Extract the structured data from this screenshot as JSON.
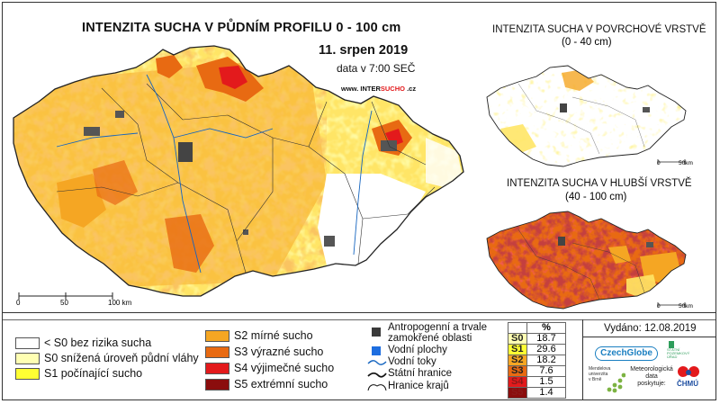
{
  "main_map": {
    "title": "INTENZITA SUCHA V PŮDNÍM PROFILU 0 - 100 cm",
    "date": "11. srpen 2019",
    "data_time": "data v 7:00 SEČ",
    "website": {
      "prefix": "www. INTER",
      "brand": "SUCHO",
      "suffix": " .cz"
    },
    "scale_labels": [
      "0",
      "50",
      "100 km"
    ]
  },
  "surface_map": {
    "title": "INTENZITA SUCHA V POVRCHOVÉ VRSTVĚ",
    "subtitle": "(0 - 40 cm)",
    "scale_labels": [
      "0",
      "50km"
    ]
  },
  "deep_map": {
    "title": "INTENZITA SUCHA V HLUBŠÍ VRSTVĚ",
    "subtitle": "(40 - 100 cm)",
    "scale_labels": [
      "0",
      "50km"
    ]
  },
  "legend": {
    "classes": [
      {
        "label": "< S0 bez rizika sucha",
        "color": "#ffffff"
      },
      {
        "label": "S0 snížená úroveň půdní vláhy",
        "color": "#ffffb3"
      },
      {
        "label": "S1 počínající sucho",
        "color": "#ffff33"
      },
      {
        "label": "S2 mírné sucho",
        "color": "#f5a623"
      },
      {
        "label": "S3 výrazné sucho",
        "color": "#e86a12"
      },
      {
        "label": "S4 výjimečné sucho",
        "color": "#e31a1c"
      },
      {
        "label": "S5 extrémní sucho",
        "color": "#8b0d0d"
      }
    ],
    "other": [
      {
        "label": "Antropogenní a trvale zamokřené oblasti",
        "line1": "Antropogenní a trvale",
        "line2": "zamokřené oblasti",
        "icon": "antropogenic-square-icon"
      },
      {
        "label": "Vodní plochy",
        "icon": "water-body-square-icon"
      },
      {
        "label": "Vodní toky",
        "icon": "river-line-icon"
      },
      {
        "label": "Státní hranice",
        "icon": "state-border-icon"
      },
      {
        "label": "Hranice krajů",
        "icon": "region-border-icon"
      }
    ]
  },
  "stats": {
    "header": "%",
    "rows": [
      {
        "cls": "S0",
        "value": "18.7",
        "color": "#ffffb3"
      },
      {
        "cls": "S1",
        "value": "29.6",
        "color": "#ffff33"
      },
      {
        "cls": "S2",
        "value": "18.2",
        "color": "#f5a623"
      },
      {
        "cls": "S3",
        "value": "7.6",
        "color": "#e86a12"
      },
      {
        "cls": "S4",
        "value": "1.5",
        "color": "#e31a1c"
      },
      {
        "cls": "S5",
        "value": "1.4",
        "color": "#8b0d0d"
      }
    ]
  },
  "issued": "Vydáno: 12.08.2019",
  "logos": {
    "czechglobe": "CzechGlobe",
    "mendel": [
      "Mendelova",
      "univerzita",
      "v Brně"
    ],
    "spu": [
      "STÁTNÍ",
      "POZEMKOVÝ",
      "ÚŘAD"
    ],
    "meteo": [
      "Meteorologická",
      "data",
      "poskytuje:"
    ],
    "chmu": "ČHMÚ"
  }
}
